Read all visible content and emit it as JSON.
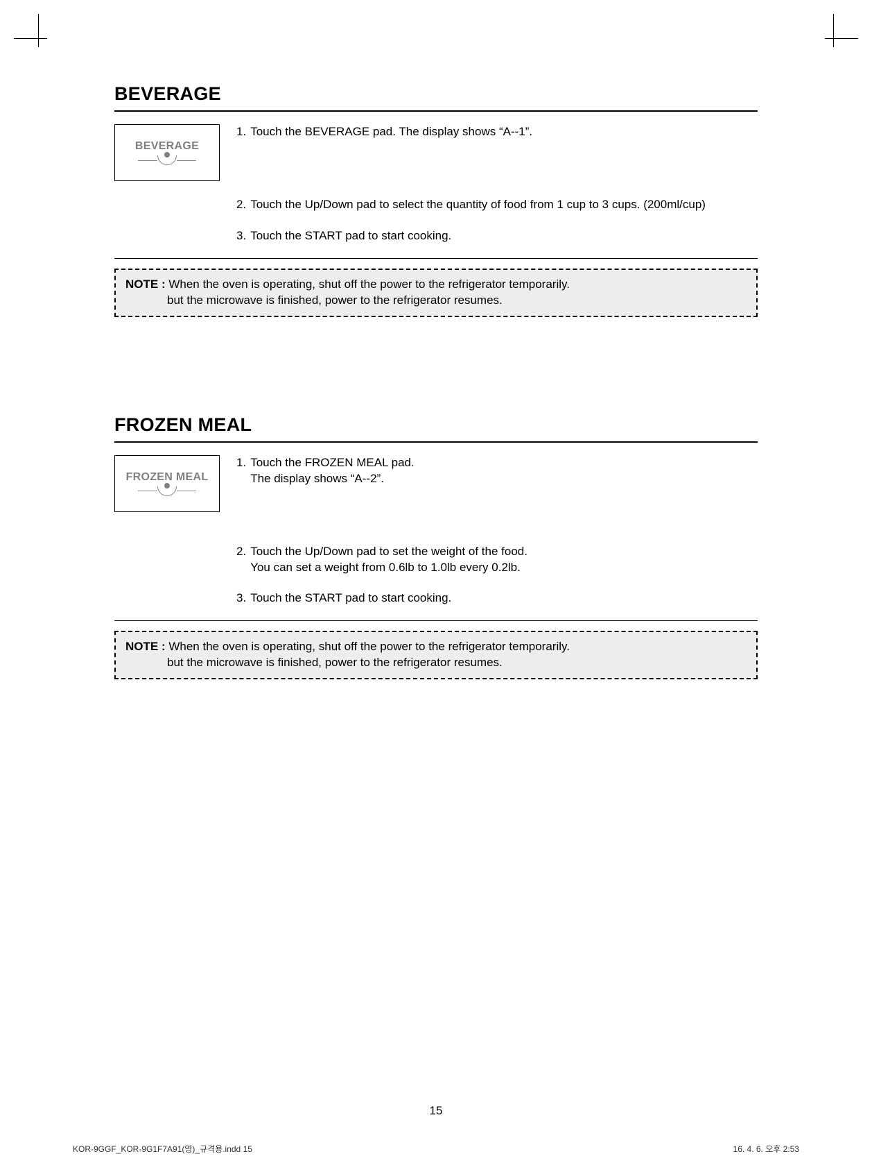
{
  "page": {
    "number": "15",
    "footer_left": "KOR-9GGF_KOR-9G1F7A91(영)_규격용.indd   15",
    "footer_right": "16. 4. 6.   오후 2:53"
  },
  "sections": {
    "beverage": {
      "heading": "BEVERAGE",
      "pad_label": "BEVERAGE",
      "steps": {
        "s1": {
          "num": "1.",
          "text": "Touch the BEVERAGE pad. The display shows “A--1”."
        },
        "s2": {
          "num": "2.",
          "text": "Touch the Up/Down pad to select the quantity of food from 1 cup to 3 cups. (200ml/cup)"
        },
        "s3": {
          "num": "3.",
          "text": "Touch the START pad to start cooking."
        }
      },
      "note": {
        "label": "NOTE :",
        "line1": "When the oven is operating, shut off the power to the refrigerator temporarily.",
        "line2": "but the microwave is finished, power to the refrigerator resumes."
      }
    },
    "frozen_meal": {
      "heading": "FROZEN MEAL",
      "pad_label": "FROZEN MEAL",
      "steps": {
        "s1": {
          "num": "1.",
          "line1": "Touch the FROZEN MEAL pad.",
          "line2": "The display shows “A--2”."
        },
        "s2": {
          "num": "2.",
          "line1": "Touch the Up/Down pad to set the weight of the food.",
          "line2": "You can set a weight from 0.6lb to 1.0lb every 0.2lb."
        },
        "s3": {
          "num": "3.",
          "text": "Touch the START pad to start cooking."
        }
      },
      "note": {
        "label": "NOTE :",
        "line1": "When the oven is operating, shut off the power to the refrigerator temporarily.",
        "line2": "but the microwave is finished, power to the refrigerator resumes."
      }
    }
  }
}
